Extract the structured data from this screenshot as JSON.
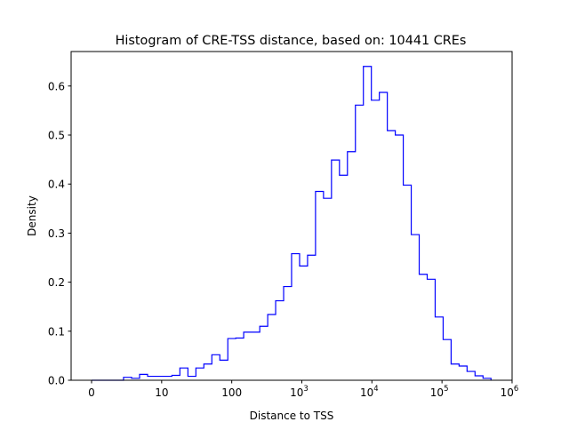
{
  "chart_data": {
    "type": "histogram",
    "title": "Histogram of CRE-TSS distance, based on: 10441 CREs",
    "xlabel": "Distance to TSS",
    "ylabel": "Density",
    "x_scale": "symlog",
    "x_linthresh": 10,
    "xlim": [
      -3,
      1000000
    ],
    "ylim": [
      0,
      0.67
    ],
    "grid": false,
    "line_color": "#0000ff",
    "histtype": "step",
    "x_ticks": [
      {
        "value": 0,
        "label": "0",
        "sup": ""
      },
      {
        "value": 10,
        "label": "10",
        "sup": ""
      },
      {
        "value": 100,
        "label": "100",
        "sup": ""
      },
      {
        "value": 1000,
        "label": "10",
        "sup": "3"
      },
      {
        "value": 10000,
        "label": "10",
        "sup": "4"
      },
      {
        "value": 100000,
        "label": "10",
        "sup": "5"
      },
      {
        "value": 1000000,
        "label": "10",
        "sup": "6"
      }
    ],
    "y_ticks": [
      {
        "value": 0.0,
        "label": "0.0"
      },
      {
        "value": 0.1,
        "label": "0.1"
      },
      {
        "value": 0.2,
        "label": "0.2"
      },
      {
        "value": 0.3,
        "label": "0.3"
      },
      {
        "value": 0.4,
        "label": "0.4"
      },
      {
        "value": 0.5,
        "label": "0.5"
      },
      {
        "value": 0.6,
        "label": "0.6"
      }
    ],
    "bin_edges": [
      0,
      1.14,
      2.28,
      3.42,
      4.56,
      5.71,
      6.85,
      7.99,
      9.13,
      10.8,
      14.0,
      18.2,
      23.7,
      30.8,
      40.0,
      52.0,
      67.6,
      87.9,
      114,
      148,
      193,
      251,
      326,
      423,
      550,
      714,
      929,
      1207,
      1568,
      2038,
      2649,
      3443,
      4474,
      5814,
      7556,
      9820,
      12762,
      16585,
      21554,
      28010,
      36402,
      47306,
      61478,
      79895,
      103828,
      134930,
      175350,
      227880,
      296140,
      384860,
      500150
    ],
    "values": [
      0,
      0,
      0,
      0,
      0.006,
      0.004,
      0.012,
      0.008,
      0.008,
      0.008,
      0.01,
      0.025,
      0.008,
      0.025,
      0.033,
      0.052,
      0.041,
      0.085,
      0.086,
      0.098,
      0.098,
      0.11,
      0.134,
      0.162,
      0.191,
      0.258,
      0.233,
      0.255,
      0.385,
      0.371,
      0.449,
      0.418,
      0.466,
      0.561,
      0.64,
      0.571,
      0.587,
      0.509,
      0.5,
      0.398,
      0.297,
      0.216,
      0.206,
      0.129,
      0.083,
      0.033,
      0.029,
      0.018,
      0.009,
      0.004
    ]
  }
}
